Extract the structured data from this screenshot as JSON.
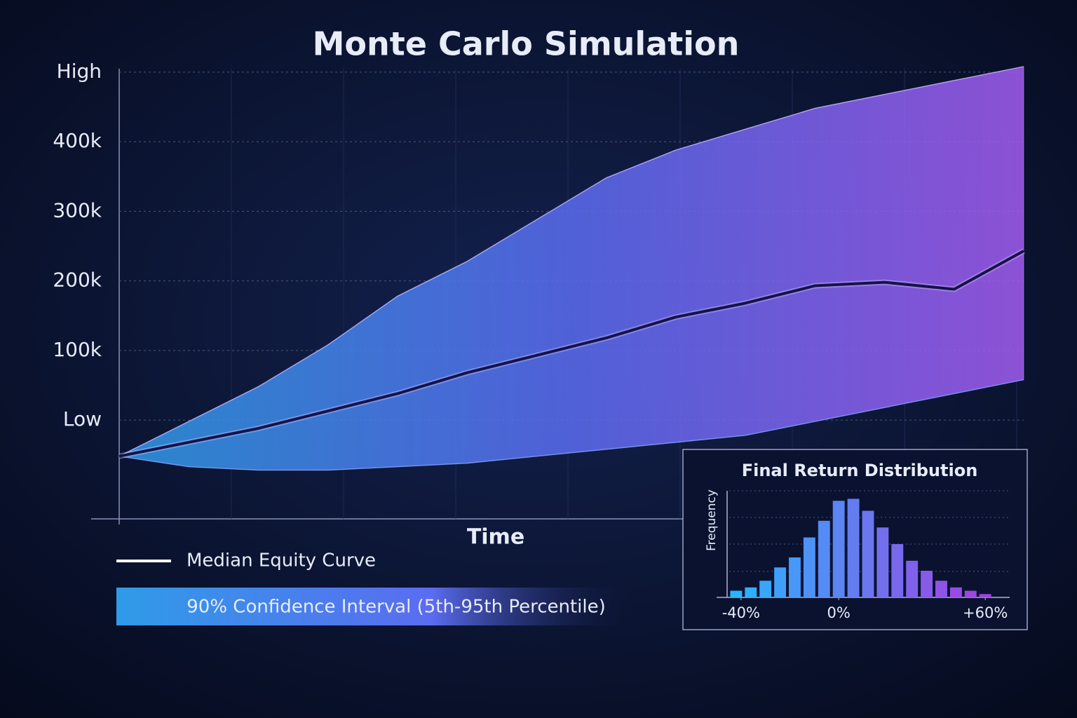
{
  "chart_data": [
    {
      "type": "line",
      "title": "Monte Carlo Simulation",
      "x_label": "Time",
      "categories": [
        null,
        null,
        null,
        null,
        null,
        null,
        null,
        null,
        null,
        null,
        null,
        null,
        null,
        null
      ],
      "ylim": [
        -142000,
        515000
      ],
      "yticks": [
        {
          "value": 0,
          "label": "Low"
        },
        {
          "value": 100000,
          "label": "100k"
        },
        {
          "value": 200000,
          "label": "200k"
        },
        {
          "value": 300000,
          "label": "300k"
        },
        {
          "value": 400000,
          "label": "400k"
        },
        {
          "value": 500000,
          "label": "High"
        }
      ],
      "grid": true,
      "series": [
        {
          "name": "Median Equity Curve",
          "color": "#16124a",
          "legend_color": "#ffffff",
          "values": [
            -52000,
            -32000,
            -12000,
            13000,
            38000,
            68000,
            93000,
            118000,
            148000,
            168000,
            193000,
            198000,
            188000,
            243000
          ]
        },
        {
          "name": "90% Confidence Interval (5th-95th Percentile)",
          "colors": [
            "#2f9be8",
            "#5b6cf0",
            "#a35cf2"
          ],
          "upper": [
            -52000,
            -2000,
            48000,
            108000,
            178000,
            228000,
            288000,
            348000,
            388000,
            418000,
            448000,
            468000,
            488000,
            508000
          ],
          "lower": [
            -52000,
            -67000,
            -72000,
            -72000,
            -67000,
            -62000,
            -52000,
            -42000,
            -32000,
            -22000,
            -2000,
            18000,
            38000,
            58000
          ]
        }
      ]
    },
    {
      "type": "histogram",
      "title": "Final Return Distribution",
      "y_label": "Frequency",
      "bins": [
        -45,
        -39,
        -33,
        -27,
        -21,
        -15,
        -9,
        -3,
        3,
        9,
        15,
        21,
        27,
        33,
        39,
        45,
        51,
        57,
        63
      ],
      "counts": [
        10,
        15,
        25,
        45,
        60,
        90,
        115,
        145,
        148,
        130,
        105,
        80,
        55,
        40,
        25,
        15,
        10,
        5
      ],
      "xlim": [
        -50,
        70
      ],
      "xticks": [
        {
          "value": -40,
          "label": "-40%"
        },
        {
          "value": 0,
          "label": "0%"
        },
        {
          "value": 60,
          "label": "+60%"
        }
      ],
      "ylim": [
        0,
        160
      ],
      "colors": [
        "#2ab4ff",
        "#a43fe0"
      ]
    }
  ]
}
